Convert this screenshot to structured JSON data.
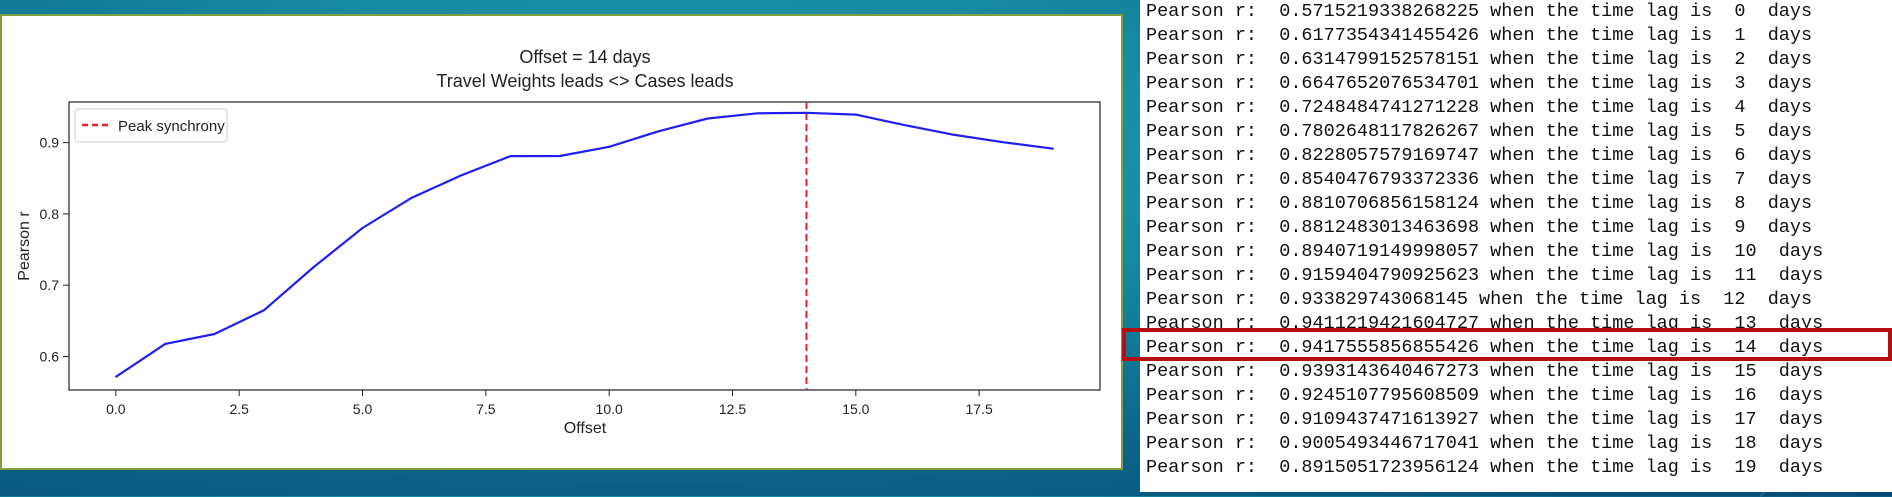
{
  "chart_data": {
    "type": "line",
    "title": "Offset = 14 days",
    "subtitle": "Travel Weights leads <> Cases leads",
    "xlabel": "Offset",
    "ylabel": "Pearson r",
    "xlim": [
      -0.95,
      19.95
    ],
    "ylim": [
      0.553,
      0.957
    ],
    "xticks": [
      0.0,
      2.5,
      5.0,
      7.5,
      10.0,
      12.5,
      15.0,
      17.5
    ],
    "xtick_labels": [
      "0.0",
      "2.5",
      "5.0",
      "7.5",
      "10.0",
      "12.5",
      "15.0",
      "17.5"
    ],
    "yticks": [
      0.6,
      0.7,
      0.8,
      0.9
    ],
    "ytick_labels": [
      "0.6",
      "0.7",
      "0.8",
      "0.9"
    ],
    "grid": false,
    "legend_position": "top-left",
    "series": [
      {
        "color": "#1f1fef",
        "x": [
          0,
          1,
          2,
          3,
          4,
          5,
          6,
          7,
          8,
          9,
          10,
          11,
          12,
          13,
          14,
          15,
          16,
          17,
          18,
          19
        ],
        "y": [
          0.5715,
          0.6177,
          0.6315,
          0.6648,
          0.7248,
          0.7803,
          0.8228,
          0.854,
          0.8811,
          0.8812,
          0.8941,
          0.9159,
          0.9338,
          0.9411,
          0.9418,
          0.9393,
          0.9245,
          0.9109,
          0.9005,
          0.8915
        ]
      }
    ],
    "annotations": [
      {
        "type": "vline",
        "x": 14,
        "label": "Peak synchrony",
        "color": "#e0262b",
        "style": "dashed"
      }
    ]
  },
  "console": {
    "highlight_index": 14,
    "lines": [
      "Pearson r:  0.5715219338268225 when the time lag is  0  days",
      "Pearson r:  0.6177354341455426 when the time lag is  1  days",
      "Pearson r:  0.6314799152578151 when the time lag is  2  days",
      "Pearson r:  0.6647652076534701 when the time lag is  3  days",
      "Pearson r:  0.7248484741271228 when the time lag is  4  days",
      "Pearson r:  0.7802648117826267 when the time lag is  5  days",
      "Pearson r:  0.8228057579169747 when the time lag is  6  days",
      "Pearson r:  0.8540476793372336 when the time lag is  7  days",
      "Pearson r:  0.8810706856158124 when the time lag is  8  days",
      "Pearson r:  0.8812483013463698 when the time lag is  9  days",
      "Pearson r:  0.8940719149998057 when the time lag is  10  days",
      "Pearson r:  0.9159404790925623 when the time lag is  11  days",
      "Pearson r:  0.933829743068145 when the time lag is  12  days",
      "Pearson r:  0.9411219421604727 when the time lag is  13  days",
      "Pearson r:  0.9417555856855426 when the time lag is  14  days",
      "Pearson r:  0.9393143640467273 when the time lag is  15  days",
      "Pearson r:  0.9245107795608509 when the time lag is  16  days",
      "Pearson r:  0.9109437471613927 when the time lag is  17  days",
      "Pearson r:  0.9005493446717041 when the time lag is  18  days",
      "Pearson r:  0.8915051723956124 when the time lag is  19  days"
    ]
  }
}
